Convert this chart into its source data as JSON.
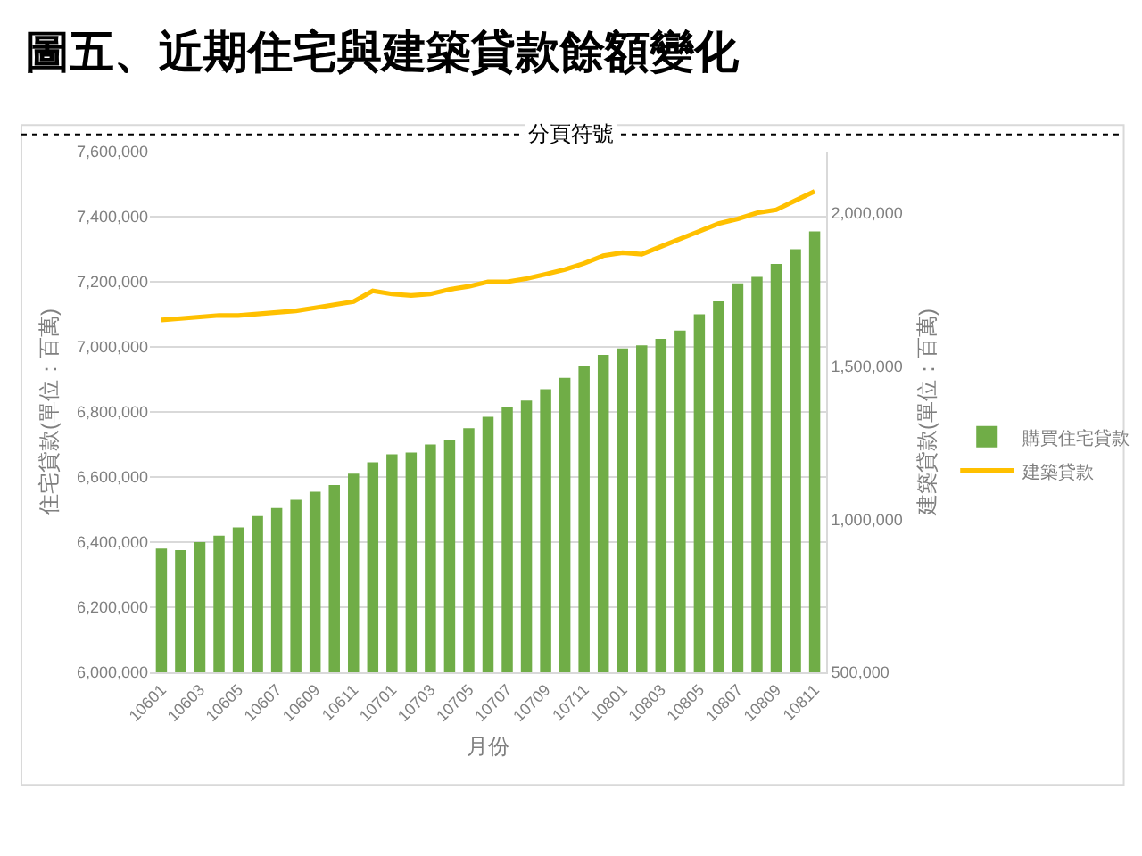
{
  "chart_data": {
    "type": "bar",
    "title": "圖五、近期住宅與建築貸款餘額變化",
    "xlabel": "月份",
    "ylabel": "住宅貸款(單位：百萬)",
    "y2label": "建築貸款(單位：百萬)",
    "annotations": [
      "分頁符號"
    ],
    "categories": [
      "10601",
      null,
      "10603",
      null,
      "10605",
      null,
      "10607",
      null,
      "10609",
      null,
      "10611",
      null,
      "10701",
      null,
      "10703",
      null,
      "10705",
      null,
      "10707",
      null,
      "10709",
      null,
      "10711",
      null,
      "10801",
      null,
      "10803",
      null,
      "10805",
      null,
      "10807",
      null,
      "10809",
      null,
      "10811"
    ],
    "series": [
      {
        "name": "購買住宅貸款",
        "type": "bar",
        "color": "#70ad47",
        "values": [
          6380000,
          6375000,
          6400000,
          6420000,
          6445000,
          6480000,
          6505000,
          6530000,
          6555000,
          6575000,
          6610000,
          6645000,
          6670000,
          6675000,
          6700000,
          6715000,
          6750000,
          6785000,
          6815000,
          6835000,
          6870000,
          6905000,
          6940000,
          6975000,
          6995000,
          7005000,
          7025000,
          7050000,
          7100000,
          7140000,
          7195000,
          7215000,
          7255000,
          7300000,
          7355000
        ]
      },
      {
        "name": "建築貸款",
        "type": "line",
        "color": "#ffc000",
        "axis": "y2",
        "values": [
          1650000,
          1655000,
          1660000,
          1665000,
          1665000,
          1670000,
          1675000,
          1680000,
          1690000,
          1700000,
          1710000,
          1745000,
          1735000,
          1730000,
          1735000,
          1750000,
          1760000,
          1775000,
          1775000,
          1785000,
          1800000,
          1815000,
          1835000,
          1860000,
          1870000,
          1865000,
          1890000,
          1915000,
          1940000,
          1965000,
          1980000,
          2000000,
          2010000,
          2040000,
          2070000
        ]
      }
    ],
    "ylim": [
      6000000,
      7600000
    ],
    "yticks": [
      {
        "value": 6000000,
        "label": "6,000,000"
      },
      {
        "value": 6200000,
        "label": "6,200,000"
      },
      {
        "value": 6400000,
        "label": "6,400,000"
      },
      {
        "value": 6600000,
        "label": "6,600,000"
      },
      {
        "value": 6800000,
        "label": "6,800,000"
      },
      {
        "value": 7000000,
        "label": "7,000,000"
      },
      {
        "value": 7200000,
        "label": "7,200,000"
      },
      {
        "value": 7400000,
        "label": "7,400,000"
      },
      {
        "value": 7600000,
        "label": "7,600,000"
      }
    ],
    "y2lim": [
      500000,
      2200000
    ],
    "y2ticks": [
      {
        "value": 500000,
        "label": "500,000"
      },
      {
        "value": 1000000,
        "label": "1,000,000"
      },
      {
        "value": 1500000,
        "label": "1,500,000"
      },
      {
        "value": 2000000,
        "label": "2,000,000"
      }
    ],
    "grid": "y",
    "legend": "right",
    "marker": "none",
    "line_style": "solid"
  }
}
